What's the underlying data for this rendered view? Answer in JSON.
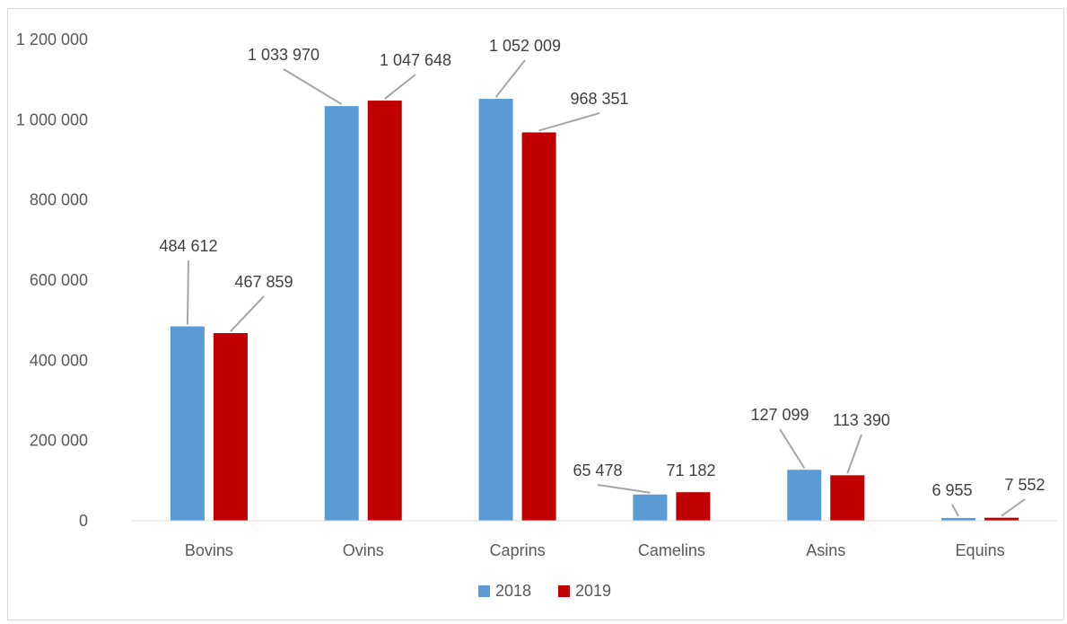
{
  "chart_data": {
    "type": "bar",
    "title": "",
    "xlabel": "",
    "ylabel": "",
    "categories": [
      "Bovins",
      "Ovins",
      "Caprins",
      "Camelins",
      "Asins",
      "Equins"
    ],
    "series": [
      {
        "name": "2018",
        "color": "#5b9bd5",
        "values": [
          484612,
          1033970,
          1052009,
          65478,
          127099,
          6955
        ]
      },
      {
        "name": "2019",
        "color": "#c00000",
        "values": [
          467859,
          1047648,
          968351,
          71182,
          113390,
          7552
        ]
      }
    ],
    "data_labels": [
      [
        "484 612",
        "1 033 970",
        "1 052 009",
        "65 478",
        "127 099",
        "6 955"
      ],
      [
        "467 859",
        "1 047 648",
        "968 351",
        "71 182",
        "113 390",
        "7 552"
      ]
    ],
    "yticks": [
      "0",
      "200 000",
      "400 000",
      "600 000",
      "800 000",
      "1 000 000",
      "1 200 000"
    ],
    "ylim": [
      0,
      1200000
    ],
    "grid": false,
    "legend_position": "bottom"
  }
}
